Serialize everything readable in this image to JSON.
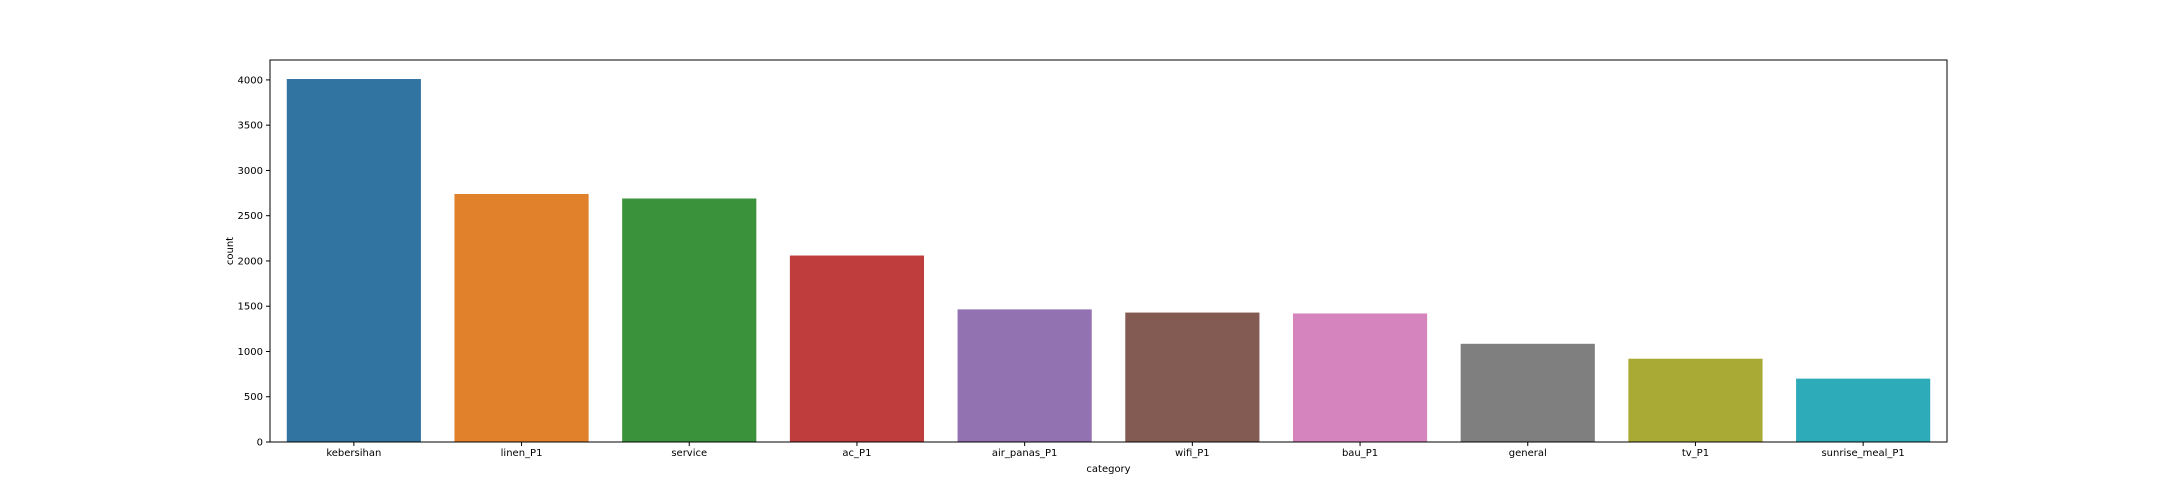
{
  "chart_data": {
    "type": "bar",
    "categories": [
      "kebersihan",
      "linen_P1",
      "service",
      "ac_P1",
      "air_panas_P1",
      "wifi_P1",
      "bau_P1",
      "general",
      "tv_P1",
      "sunrise_meal_P1"
    ],
    "values": [
      4010,
      2740,
      2690,
      2060,
      1465,
      1430,
      1420,
      1085,
      920,
      700
    ],
    "colors": [
      "#3274a1",
      "#e1812c",
      "#3a923a",
      "#c03d3e",
      "#9372b2",
      "#845b53",
      "#d684bd",
      "#7f7f7f",
      "#a9aa35",
      "#2eabb8"
    ],
    "xlabel": "category",
    "ylabel": "count",
    "ylim": [
      0,
      4220
    ],
    "yticks": [
      0,
      500,
      1000,
      1500,
      2000,
      2500,
      3000,
      3500,
      4000
    ],
    "grid": false
  }
}
